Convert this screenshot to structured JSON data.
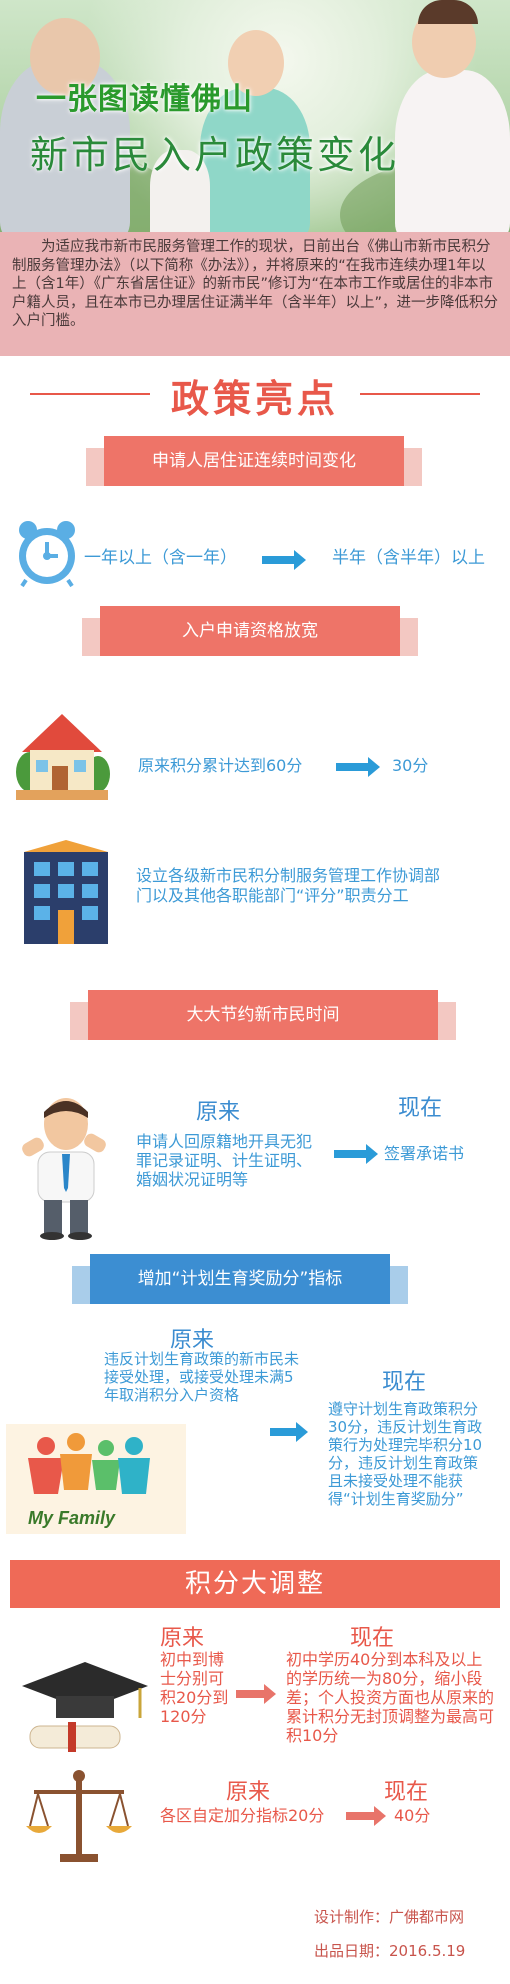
{
  "hero": {
    "title_line1": "一张图读懂佛山",
    "title_line2": "新市民入户政策变化"
  },
  "intro": "为适应我市新市民服务管理工作的现状，日前出台《佛山市新市民积分制服务管理办法》（以下简称《办法》），并将原来的“在我市连续办理1年以上（含1年）《广东省居住证》的新市民”修订为“在本市工作或居住的非本市户籍人员，且在本市已办理居住证满半年（含半年）以上”，进一步降低积分入户门槛。",
  "highlights_title": "政策亮点",
  "section1": {
    "banner": "申请人居住证连续时间变化",
    "from": "一年以上（含一年）",
    "to": "半年（含半年）以上",
    "icon": "alarm-clock-icon"
  },
  "section2": {
    "banner": "入户申请资格放宽",
    "item1_from": "原来积分累计达到60分",
    "item1_to": "30分",
    "item2_text": "设立各级新市民积分制服务管理工作协调部门以及其他各职能部门“评分”职责分工"
  },
  "section3": {
    "banner": "大大节约新市民时间",
    "before_label": "原来",
    "after_label": "现在",
    "before_text": "申请人回原籍地开具无犯罪记录证明、计生证明、婚姻状况证明等",
    "after_text": "签署承诺书"
  },
  "section4": {
    "banner": "增加“计划生育奖励分”指标",
    "before_label": "原来",
    "after_label": "现在",
    "before_text": "违反计划生育政策的新市民未接受处理，或接受处理未满5年取消积分入户资格",
    "after_text": "遵守计划生育政策积分30分，违反计划生育政策行为处理完毕积分10分，违反计划生育政策且未接受处理不能获得“计划生育奖励分”",
    "family_label": "My Family"
  },
  "section5": {
    "banner": "积分大调整",
    "row1_before_label": "原来",
    "row1_after_label": "现在",
    "row1_before_text": "初中到博士分别可积20分到120分",
    "row1_after_text": "初中学历40分到本科及以上的学历统一为80分，缩小段差；个人投资方面也从原来的累计积分无封顶调整为最高可积10分",
    "row2_before_label": "原来",
    "row2_after_label": "现在",
    "row2_before_text": "各区自定加分指标20分",
    "row2_after_text": "40分"
  },
  "footer": {
    "design": "设计制作：广佛都市网",
    "date": "出品日期：2016.5.19"
  },
  "colors": {
    "accent_red": "#e8584a",
    "banner_red": "#ee7468",
    "banner_blue": "#3c8ed2",
    "text_blue": "#3d9ad6",
    "intro_bg": "#eab3b5"
  }
}
